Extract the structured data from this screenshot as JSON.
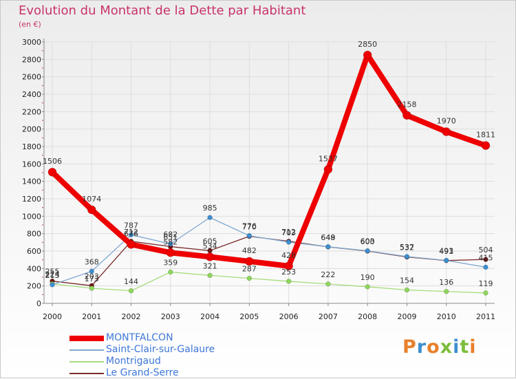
{
  "title": "Evolution du Montant de la Dette par Habitant",
  "subtitle": "(en €)",
  "logo": {
    "text": "Proxiti",
    "letter_colors": [
      "#e8802c",
      "#3c8fd0",
      "#e8802c",
      "#7cbd3c",
      "#3c8fd0",
      "#7cbd3c",
      "#e8802c"
    ]
  },
  "colors": {
    "grid": "#dddddd",
    "axis": "#888888",
    "tick_mark": "#c8336b",
    "label": "#333333",
    "background_top": "#ececec",
    "background_bottom": "#ffffff"
  },
  "chart_data": {
    "type": "line",
    "title": "Evolution du Montant de la Dette par Habitant",
    "subtitle": "(en €)",
    "xlabel": "",
    "ylabel": "",
    "ylim": [
      0,
      3000
    ],
    "yticks": [
      0,
      200,
      400,
      600,
      800,
      1000,
      1200,
      1400,
      1600,
      1800,
      2000,
      2200,
      2400,
      2600,
      2800,
      3000
    ],
    "grid": true,
    "legend_position": "bottom-left",
    "categories": [
      "2000",
      "2001",
      "2002",
      "2003",
      "2004",
      "2005",
      "2006",
      "2007",
      "2008",
      "2009",
      "2010",
      "2011"
    ],
    "series": [
      {
        "name": "MONTFALCON",
        "color": "#ee0000",
        "width": 8,
        "marker": "#ee0000",
        "values": [
          1506,
          1074,
          676,
          582,
          534,
          482,
          428,
          1537,
          2850,
          2158,
          1970,
          1811
        ]
      },
      {
        "name": "Saint-Clair-sur-Galaure",
        "color": "#7fa8d0",
        "width": 1.3,
        "marker": "#3c8fd0",
        "values": [
          213,
          368,
          787,
          682,
          985,
          776,
          703,
          649,
          603,
          537,
          493,
          415
        ]
      },
      {
        "name": "Montrigaud",
        "color": "#a6dc7c",
        "width": 1.3,
        "marker": "#8fd65c",
        "values": [
          224,
          173,
          144,
          359,
          321,
          287,
          253,
          222,
          190,
          154,
          136,
          119
        ]
      },
      {
        "name": "Le Grand-Serre",
        "color": "#7a2a2a",
        "width": 1.3,
        "marker": "#6a1717",
        "values": [
          255,
          203,
          712,
          651,
          605,
          770,
          712,
          648,
          600,
          532,
          491,
          504
        ]
      }
    ]
  }
}
